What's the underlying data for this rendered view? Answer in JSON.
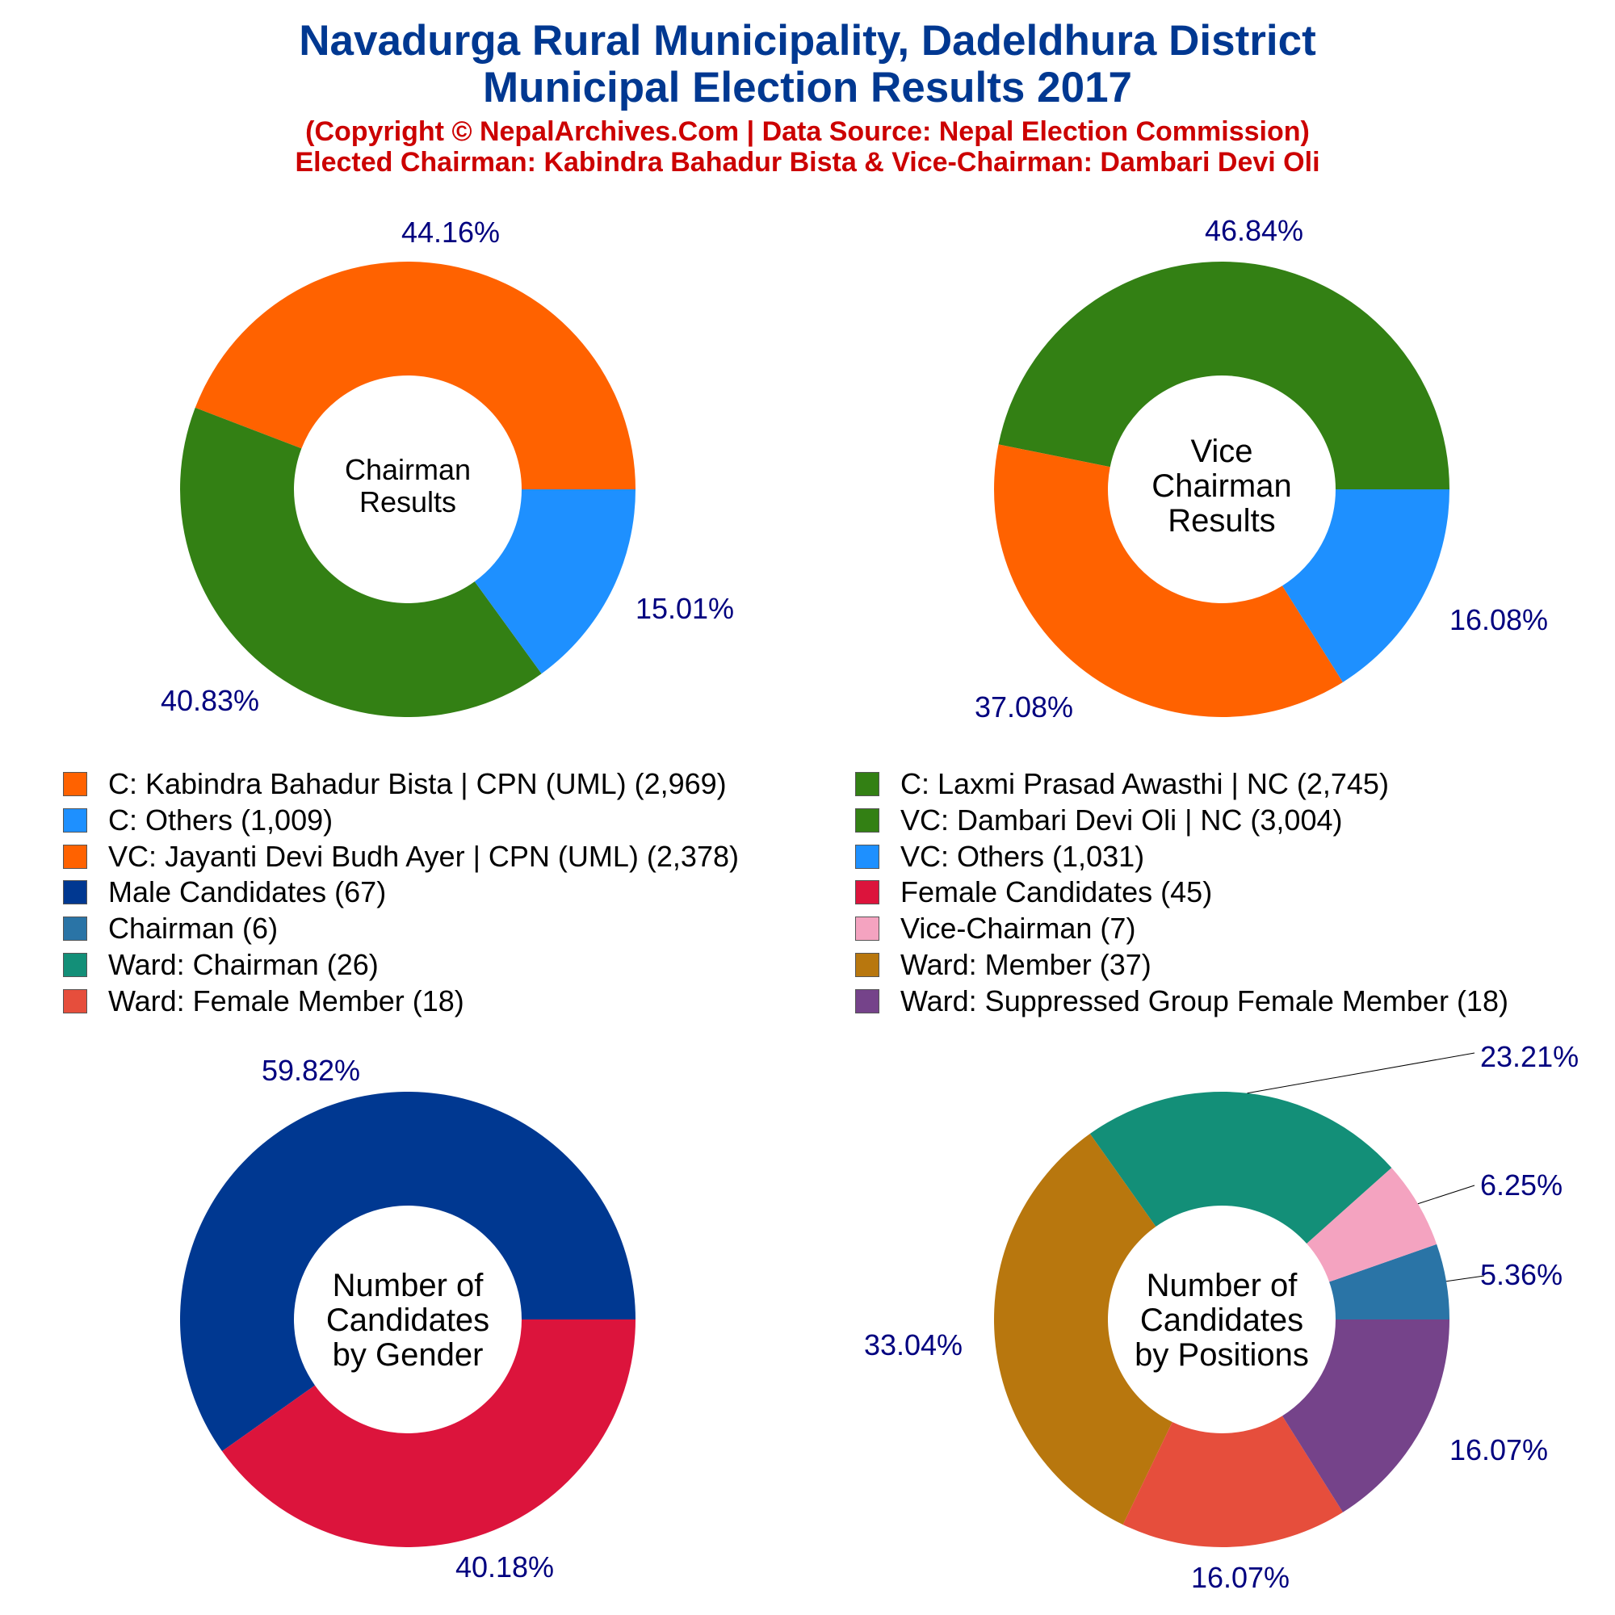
{
  "header": {
    "title_line1": "Navadurga Rural Municipality, Dadeldhura District",
    "title_line2": "Municipal Election Results 2017",
    "subtitle_line1": "(Copyright © NepalArchives.Com | Data Source: Nepal Election Commission)",
    "subtitle_line2": "Elected Chairman: Kabindra Bahadur Bista & Vice-Chairman: Dambari Devi Oli"
  },
  "colors": {
    "title": "#003891",
    "subtitle": "#CC0000",
    "percent_label": "#00007F",
    "center_text": "#000000"
  },
  "chart_data": [
    {
      "type": "pie",
      "style": "donut",
      "center_label": [
        "Chairman",
        "Results"
      ],
      "slices": [
        {
          "label": "C: Kabindra Bahadur Bista | CPN (UML)",
          "value": 2969,
          "percent_text": "44.16%",
          "color": "#FF6200"
        },
        {
          "label": "C: Laxmi Prasad Awasthi | NC",
          "value": 2745,
          "percent_text": "40.83%",
          "color": "#338014"
        },
        {
          "label": "C: Others",
          "value": 1009,
          "percent_text": "15.01%",
          "color": "#1E90FF"
        }
      ]
    },
    {
      "type": "pie",
      "style": "donut",
      "center_label": [
        "Vice",
        "Chairman",
        "Results"
      ],
      "slices": [
        {
          "label": "VC: Dambari Devi Oli | NC",
          "value": 3004,
          "percent_text": "46.84%",
          "color": "#338014"
        },
        {
          "label": "VC: Jayanti Devi Budh Ayer | CPN (UML)",
          "value": 2378,
          "percent_text": "37.08%",
          "color": "#FF6200"
        },
        {
          "label": "VC: Others",
          "value": 1031,
          "percent_text": "16.08%",
          "color": "#1E90FF"
        }
      ]
    },
    {
      "type": "pie",
      "style": "donut",
      "center_label": [
        "Number of",
        "Candidates",
        "by Gender"
      ],
      "slices": [
        {
          "label": "Male Candidates",
          "value": 67,
          "percent_text": "59.82%",
          "color": "#003891"
        },
        {
          "label": "Female Candidates",
          "value": 45,
          "percent_text": "40.18%",
          "color": "#DC143C"
        }
      ]
    },
    {
      "type": "pie",
      "style": "donut",
      "center_label": [
        "Number of",
        "Candidates",
        "by Positions"
      ],
      "slices": [
        {
          "label": "Chairman",
          "value": 6,
          "percent_text": "5.36%",
          "color": "#2A74A6"
        },
        {
          "label": "Vice-Chairman",
          "value": 7,
          "percent_text": "6.25%",
          "color": "#F4A3C0"
        },
        {
          "label": "Ward: Chairman",
          "value": 26,
          "percent_text": "23.21%",
          "color": "#138F78"
        },
        {
          "label": "Ward: Member",
          "value": 37,
          "percent_text": "33.04%",
          "color": "#B8770E"
        },
        {
          "label": "Ward: Female Member",
          "value": 18,
          "percent_text": "16.07%",
          "color": "#E64E3C"
        },
        {
          "label": "Ward: Suppressed Group Female Member",
          "value": 18,
          "percent_text": "16.07%",
          "color": "#75438A"
        }
      ]
    }
  ],
  "legend": {
    "left": [
      {
        "text": "C: Kabindra Bahadur Bista | CPN (UML) (2,969)",
        "color": "#FF6200"
      },
      {
        "text": "C: Others (1,009)",
        "color": "#1E90FF"
      },
      {
        "text": "VC: Jayanti Devi Budh Ayer | CPN (UML) (2,378)",
        "color": "#FF6200"
      },
      {
        "text": "Male Candidates (67)",
        "color": "#003891"
      },
      {
        "text": "Chairman (6)",
        "color": "#2A74A6"
      },
      {
        "text": "Ward: Chairman (26)",
        "color": "#138F78"
      },
      {
        "text": "Ward: Female Member (18)",
        "color": "#E64E3C"
      }
    ],
    "right": [
      {
        "text": "C: Laxmi Prasad Awasthi | NC (2,745)",
        "color": "#338014"
      },
      {
        "text": "VC: Dambari Devi Oli | NC (3,004)",
        "color": "#338014"
      },
      {
        "text": "VC: Others (1,031)",
        "color": "#1E90FF"
      },
      {
        "text": "Female Candidates (45)",
        "color": "#DC143C"
      },
      {
        "text": "Vice-Chairman (7)",
        "color": "#F4A3C0"
      },
      {
        "text": "Ward: Member (37)",
        "color": "#B8770E"
      },
      {
        "text": "Ward: Suppressed Group Female Member (18)",
        "color": "#75438A"
      }
    ]
  }
}
